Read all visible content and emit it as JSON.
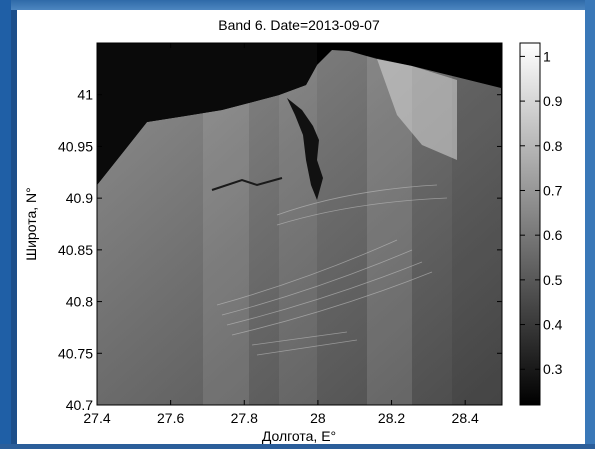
{
  "chart_data": {
    "type": "heatmap",
    "title": "Band 6. Date=2013-09-07",
    "xlabel": "Долгота, E°",
    "ylabel": "Широта, N°",
    "xlim": [
      27.4,
      28.5
    ],
    "ylim": [
      40.7,
      41.05
    ],
    "x_ticks": [
      "27.4",
      "27.6",
      "27.8",
      "28",
      "28.2",
      "28.4"
    ],
    "y_ticks": [
      "40.7",
      "40.75",
      "40.8",
      "40.85",
      "40.9",
      "40.95",
      "41"
    ],
    "colorbar": {
      "range": [
        0.22,
        1.03
      ],
      "ticks": [
        "0.3",
        "0.4",
        "0.5",
        "0.6",
        "0.7",
        "0.8",
        "0.9",
        "1"
      ],
      "colormap": "gray"
    },
    "colors": {
      "no_data": "#000000",
      "water_low": "#3a3a3a",
      "water_high": "#9a9a9a",
      "land": "#0a0a0a"
    }
  }
}
